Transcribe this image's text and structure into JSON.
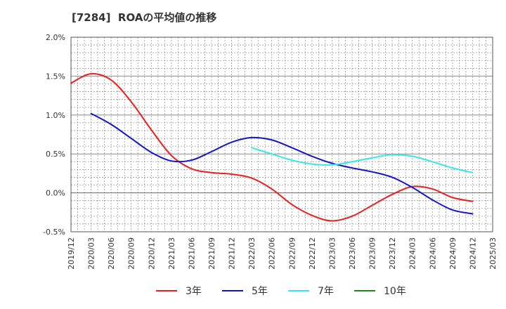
{
  "chart_data": {
    "type": "line",
    "title": "[7284]  ROAの平均値の推移",
    "ylim": [
      -0.5,
      2.0
    ],
    "y_ticks": [
      "2.0%",
      "1.5%",
      "1.0%",
      "0.5%",
      "0.0%",
      "-0.5%"
    ],
    "y_tick_values": [
      2.0,
      1.5,
      1.0,
      0.5,
      0.0,
      -0.5
    ],
    "x_ticks": [
      "2019/12",
      "2020/03",
      "2020/06",
      "2020/09",
      "2020/12",
      "2021/03",
      "2021/06",
      "2021/09",
      "2021/12",
      "2022/03",
      "2022/06",
      "2022/09",
      "2022/12",
      "2023/03",
      "2023/06",
      "2023/09",
      "2023/12",
      "2024/03",
      "2024/06",
      "2024/09",
      "2024/12",
      "2025/03"
    ],
    "grid": true,
    "legend_position": "bottom",
    "series": [
      {
        "name": "3年",
        "color": "#e8201f",
        "x": [
          "2019/12",
          "2020/03",
          "2020/06",
          "2020/09",
          "2020/12",
          "2021/03",
          "2021/06",
          "2021/09",
          "2021/12",
          "2022/03",
          "2022/06",
          "2022/09",
          "2022/12",
          "2023/03",
          "2023/06",
          "2023/09",
          "2023/12",
          "2024/03",
          "2024/06",
          "2024/09",
          "2024/12"
        ],
        "values": [
          1.41,
          1.53,
          1.45,
          1.17,
          0.81,
          0.48,
          0.31,
          0.26,
          0.24,
          0.19,
          0.05,
          -0.15,
          -0.29,
          -0.36,
          -0.3,
          -0.16,
          -0.02,
          0.08,
          0.05,
          -0.06,
          -0.11
        ]
      },
      {
        "name": "5年",
        "color": "#1515c8",
        "x": [
          "2020/03",
          "2020/06",
          "2020/09",
          "2020/12",
          "2021/03",
          "2021/06",
          "2021/09",
          "2021/12",
          "2022/03",
          "2022/06",
          "2022/09",
          "2022/12",
          "2023/03",
          "2023/06",
          "2023/09",
          "2023/12",
          "2024/03",
          "2024/06",
          "2024/09",
          "2024/12"
        ],
        "values": [
          1.02,
          0.88,
          0.7,
          0.52,
          0.41,
          0.42,
          0.53,
          0.65,
          0.71,
          0.68,
          0.58,
          0.47,
          0.38,
          0.32,
          0.27,
          0.2,
          0.07,
          -0.09,
          -0.22,
          -0.27
        ]
      },
      {
        "name": "7年",
        "color": "#36e8e8",
        "x": [
          "2022/03",
          "2022/06",
          "2022/09",
          "2022/12",
          "2023/03",
          "2023/06",
          "2023/09",
          "2023/12",
          "2024/03",
          "2024/06",
          "2024/09",
          "2024/12"
        ],
        "values": [
          0.58,
          0.5,
          0.42,
          0.37,
          0.36,
          0.4,
          0.45,
          0.49,
          0.47,
          0.4,
          0.32,
          0.26
        ]
      },
      {
        "name": "10年",
        "color": "#1b8c1b",
        "x": [],
        "values": []
      }
    ]
  }
}
